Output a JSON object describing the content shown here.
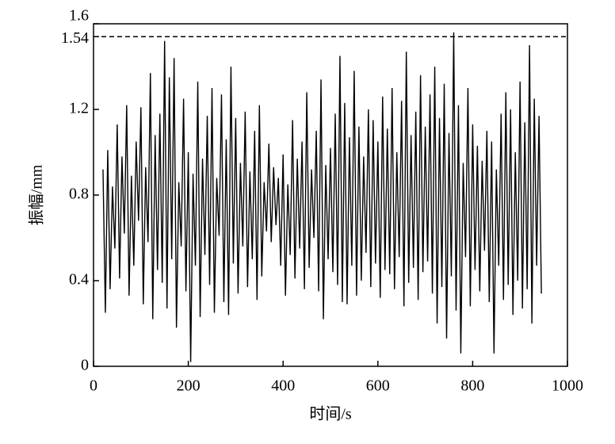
{
  "chart_data": {
    "type": "line",
    "xlabel": "时间/s",
    "ylabel": "振幅/mm",
    "xlim": [
      0,
      1000
    ],
    "xticks": [
      0,
      200,
      400,
      600,
      800,
      1000
    ],
    "ylim": [
      0,
      1.6
    ],
    "yticks": [
      0,
      0.4,
      0.8,
      1.2,
      1.54,
      1.6
    ],
    "reference_line": 1.54,
    "series": [
      {
        "color": "#000000",
        "x": [
          20,
          25,
          30,
          35,
          40,
          45,
          50,
          55,
          60,
          65,
          70,
          75,
          80,
          85,
          90,
          95,
          100,
          105,
          110,
          115,
          120,
          125,
          130,
          135,
          140,
          145,
          150,
          155,
          160,
          165,
          170,
          175,
          180,
          185,
          190,
          195,
          200,
          205,
          210,
          215,
          220,
          225,
          230,
          235,
          240,
          245,
          250,
          255,
          260,
          265,
          270,
          275,
          280,
          285,
          290,
          295,
          300,
          305,
          310,
          315,
          320,
          325,
          330,
          335,
          340,
          345,
          350,
          355,
          360,
          365,
          370,
          375,
          380,
          385,
          390,
          395,
          400,
          405,
          410,
          415,
          420,
          425,
          430,
          435,
          440,
          445,
          450,
          455,
          460,
          465,
          470,
          475,
          480,
          485,
          490,
          495,
          500,
          505,
          510,
          515,
          520,
          525,
          530,
          535,
          540,
          545,
          550,
          555,
          560,
          565,
          570,
          575,
          580,
          585,
          590,
          595,
          600,
          605,
          610,
          615,
          620,
          625,
          630,
          635,
          640,
          645,
          650,
          655,
          660,
          665,
          670,
          675,
          680,
          685,
          690,
          695,
          700,
          705,
          710,
          715,
          720,
          725,
          730,
          735,
          740,
          745,
          750,
          755,
          760,
          765,
          770,
          775,
          780,
          785,
          790,
          795,
          800,
          805,
          810,
          815,
          820,
          825,
          830,
          835,
          840,
          845,
          850,
          855,
          860,
          865,
          870,
          875,
          880,
          885,
          890,
          895,
          900,
          905,
          910,
          915,
          920,
          925,
          930,
          935,
          940,
          945
        ],
        "values": [
          0.92,
          0.25,
          1.01,
          0.36,
          0.84,
          0.55,
          1.13,
          0.41,
          0.98,
          0.62,
          1.22,
          0.33,
          0.89,
          0.47,
          1.05,
          0.68,
          1.21,
          0.29,
          0.93,
          0.58,
          1.37,
          0.22,
          1.08,
          0.45,
          1.18,
          0.39,
          1.52,
          0.27,
          1.35,
          0.5,
          1.44,
          0.18,
          0.86,
          0.56,
          1.25,
          0.35,
          1.0,
          0.02,
          0.9,
          0.47,
          1.33,
          0.23,
          0.97,
          0.52,
          1.17,
          0.38,
          1.3,
          0.25,
          0.88,
          0.61,
          1.27,
          0.3,
          1.06,
          0.24,
          1.4,
          0.48,
          1.16,
          0.34,
          0.95,
          0.56,
          1.19,
          0.37,
          0.91,
          0.5,
          1.1,
          0.31,
          1.22,
          0.42,
          0.86,
          0.63,
          1.04,
          0.58,
          0.93,
          0.66,
          0.88,
          0.47,
          0.99,
          0.33,
          0.85,
          0.52,
          1.15,
          0.41,
          0.97,
          0.55,
          1.05,
          0.36,
          1.28,
          0.46,
          0.92,
          0.6,
          1.1,
          0.35,
          1.34,
          0.22,
          0.94,
          0.5,
          1.02,
          0.44,
          1.18,
          0.38,
          1.45,
          0.3,
          1.23,
          0.29,
          1.07,
          0.47,
          1.38,
          0.33,
          1.12,
          0.4,
          0.98,
          0.53,
          1.2,
          0.37,
          1.15,
          0.48,
          1.05,
          0.32,
          1.26,
          0.45,
          1.11,
          0.43,
          1.3,
          0.36,
          1.0,
          0.51,
          1.24,
          0.28,
          1.47,
          0.39,
          1.08,
          0.46,
          1.19,
          0.31,
          1.36,
          0.44,
          1.12,
          0.49,
          1.27,
          0.34,
          1.4,
          0.2,
          1.16,
          0.37,
          1.32,
          0.13,
          1.09,
          0.42,
          1.56,
          0.26,
          1.22,
          0.06,
          0.95,
          0.51,
          1.3,
          0.28,
          1.13,
          0.45,
          1.03,
          0.35,
          0.96,
          0.54,
          1.1,
          0.3,
          1.05,
          0.06,
          0.92,
          0.47,
          1.18,
          0.31,
          1.28,
          0.38,
          1.2,
          0.24,
          1.0,
          0.4,
          1.33,
          0.27,
          1.14,
          0.36,
          1.5,
          0.2,
          1.25,
          0.47,
          1.17,
          0.34
        ]
      }
    ]
  }
}
